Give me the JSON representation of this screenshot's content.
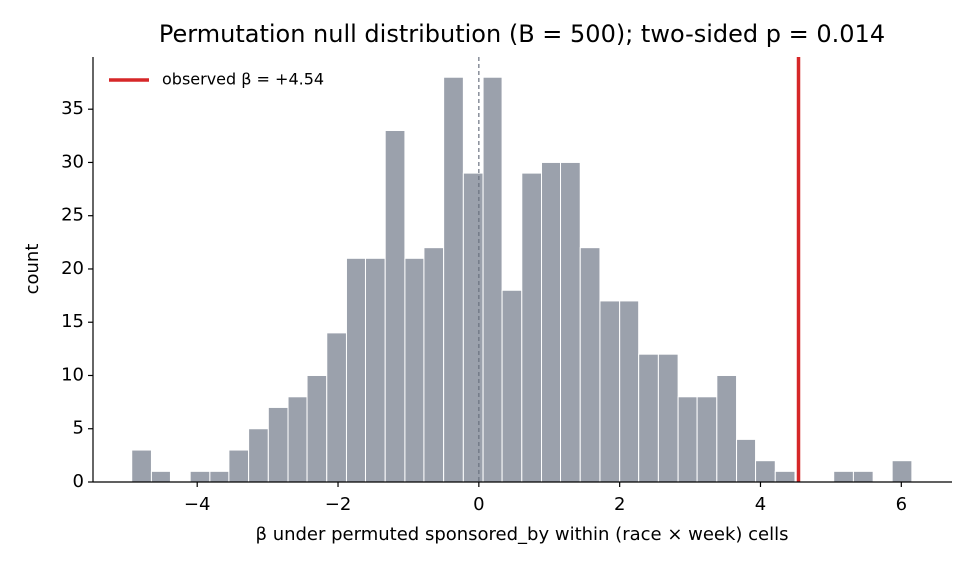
{
  "chart_data": {
    "type": "histogram",
    "title": "Permutation null distribution (B = 500); two-sided p = 0.014",
    "x_label": "β under permuted sponsored_by within (race × week) cells",
    "y_label": "count",
    "bins": [
      -4.93,
      -4.65,
      -4.38,
      -4.1,
      -3.82,
      -3.55,
      -3.27,
      -2.99,
      -2.71,
      -2.44,
      -2.16,
      -1.88,
      -1.61,
      -1.33,
      -1.05,
      -0.78,
      -0.5,
      -0.22,
      0.06,
      0.33,
      0.61,
      0.89,
      1.16,
      1.44,
      1.72,
      2.0,
      2.27,
      2.55,
      2.83,
      3.1,
      3.38,
      3.66,
      3.93,
      4.21,
      4.49,
      4.77,
      5.04,
      5.32,
      5.6,
      5.87,
      6.15
    ],
    "values": [
      3,
      1,
      0,
      1,
      1,
      3,
      5,
      7,
      8,
      10,
      14,
      21,
      21,
      33,
      21,
      22,
      38,
      29,
      38,
      18,
      29,
      30,
      30,
      22,
      17,
      17,
      12,
      12,
      8,
      8,
      10,
      4,
      2,
      1,
      0,
      0,
      1,
      1,
      0,
      2
    ],
    "color": "#9ba1ac",
    "reference_line": 0,
    "observed": {
      "name": "observed β = +4.54",
      "value": 4.54,
      "color": "#d62728"
    },
    "xlim": [
      -5.48,
      6.72
    ],
    "ylim": [
      0,
      39.9
    ],
    "xticks": [
      {
        "value": -4,
        "label": "−4"
      },
      {
        "value": -2,
        "label": "−2"
      },
      0,
      2,
      4,
      6
    ],
    "yticks": [
      0,
      5,
      10,
      15,
      20,
      25,
      30,
      35
    ],
    "legend": "upper left"
  }
}
